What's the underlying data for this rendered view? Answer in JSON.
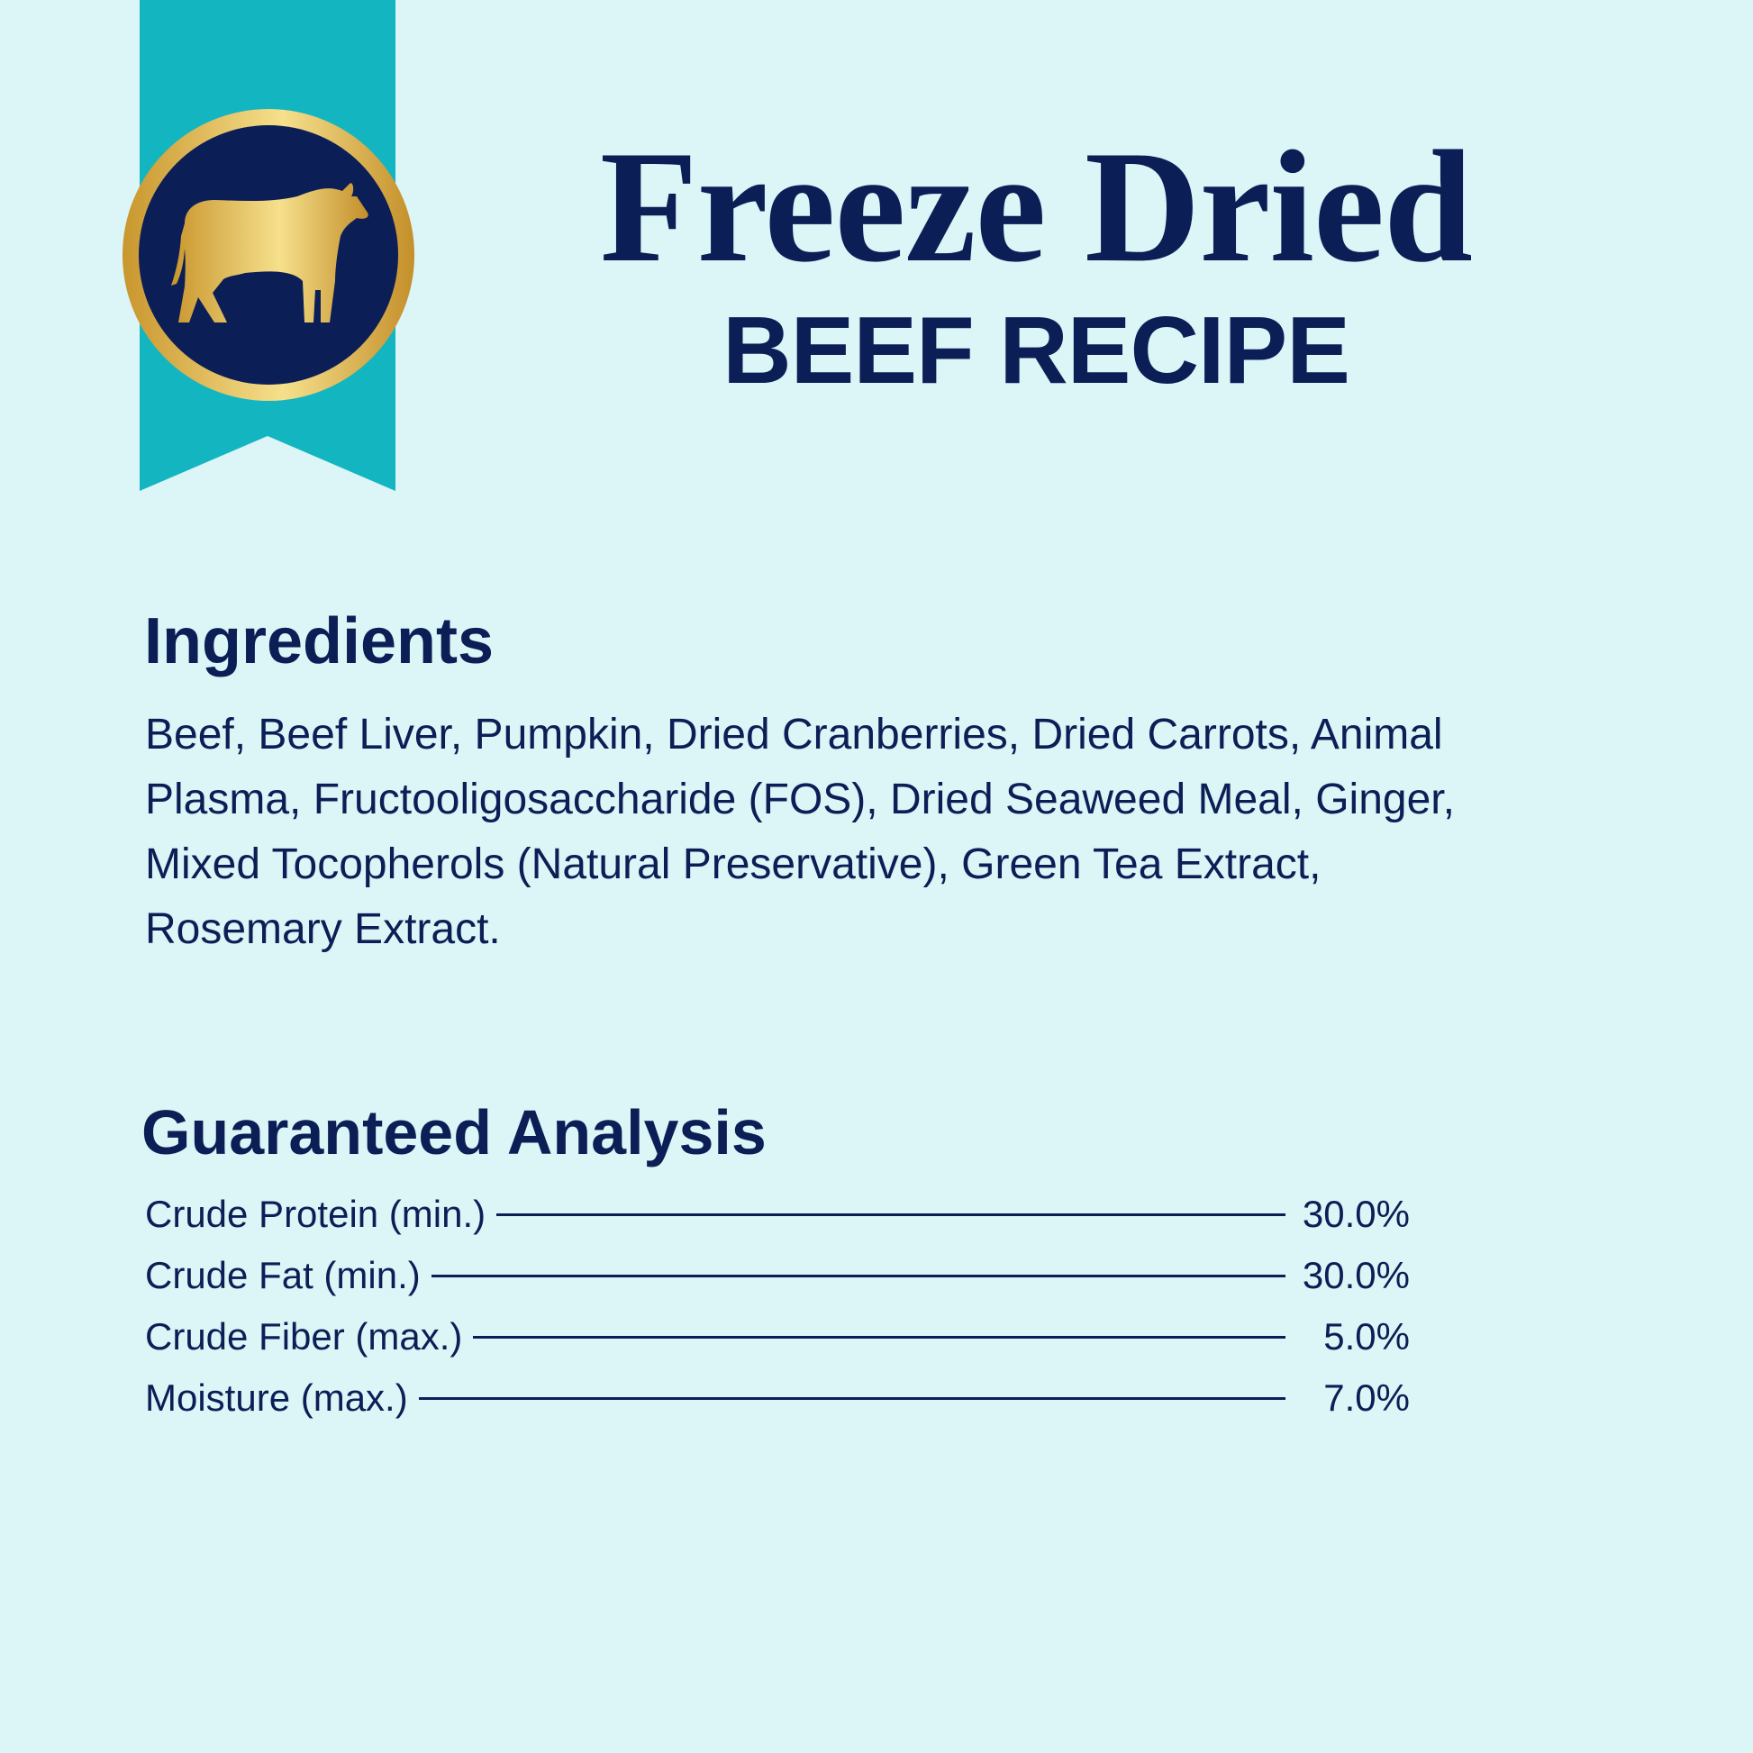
{
  "colors": {
    "background": "#dcf5f7",
    "navy": "#0b1f56",
    "ribbon": "#13b5c1",
    "gold": "#e6c36a"
  },
  "badge": {
    "icon": "cow-icon"
  },
  "header": {
    "title": "Freeze Dried",
    "subtitle": "BEEF RECIPE"
  },
  "ingredients": {
    "heading": "Ingredients",
    "lines": [
      "Beef, Beef Liver, Pumpkin, Dried Cranberries, Dried Carrots, Animal",
      "Plasma, Fructooligosaccharide (FOS), Dried Seaweed Meal, Ginger,",
      "Mixed Tocopherols (Natural Preservative), Green Tea Extract,",
      "Rosemary Extract."
    ]
  },
  "analysis": {
    "heading": "Guaranteed Analysis",
    "rows": [
      {
        "label": "Crude Protein (min.)",
        "value": "30.0%"
      },
      {
        "label": "Crude Fat (min.)",
        "value": "30.0%"
      },
      {
        "label": "Crude Fiber (max.)",
        "value": "5.0%"
      },
      {
        "label": "Moisture (max.)",
        "value": "7.0%"
      }
    ]
  }
}
